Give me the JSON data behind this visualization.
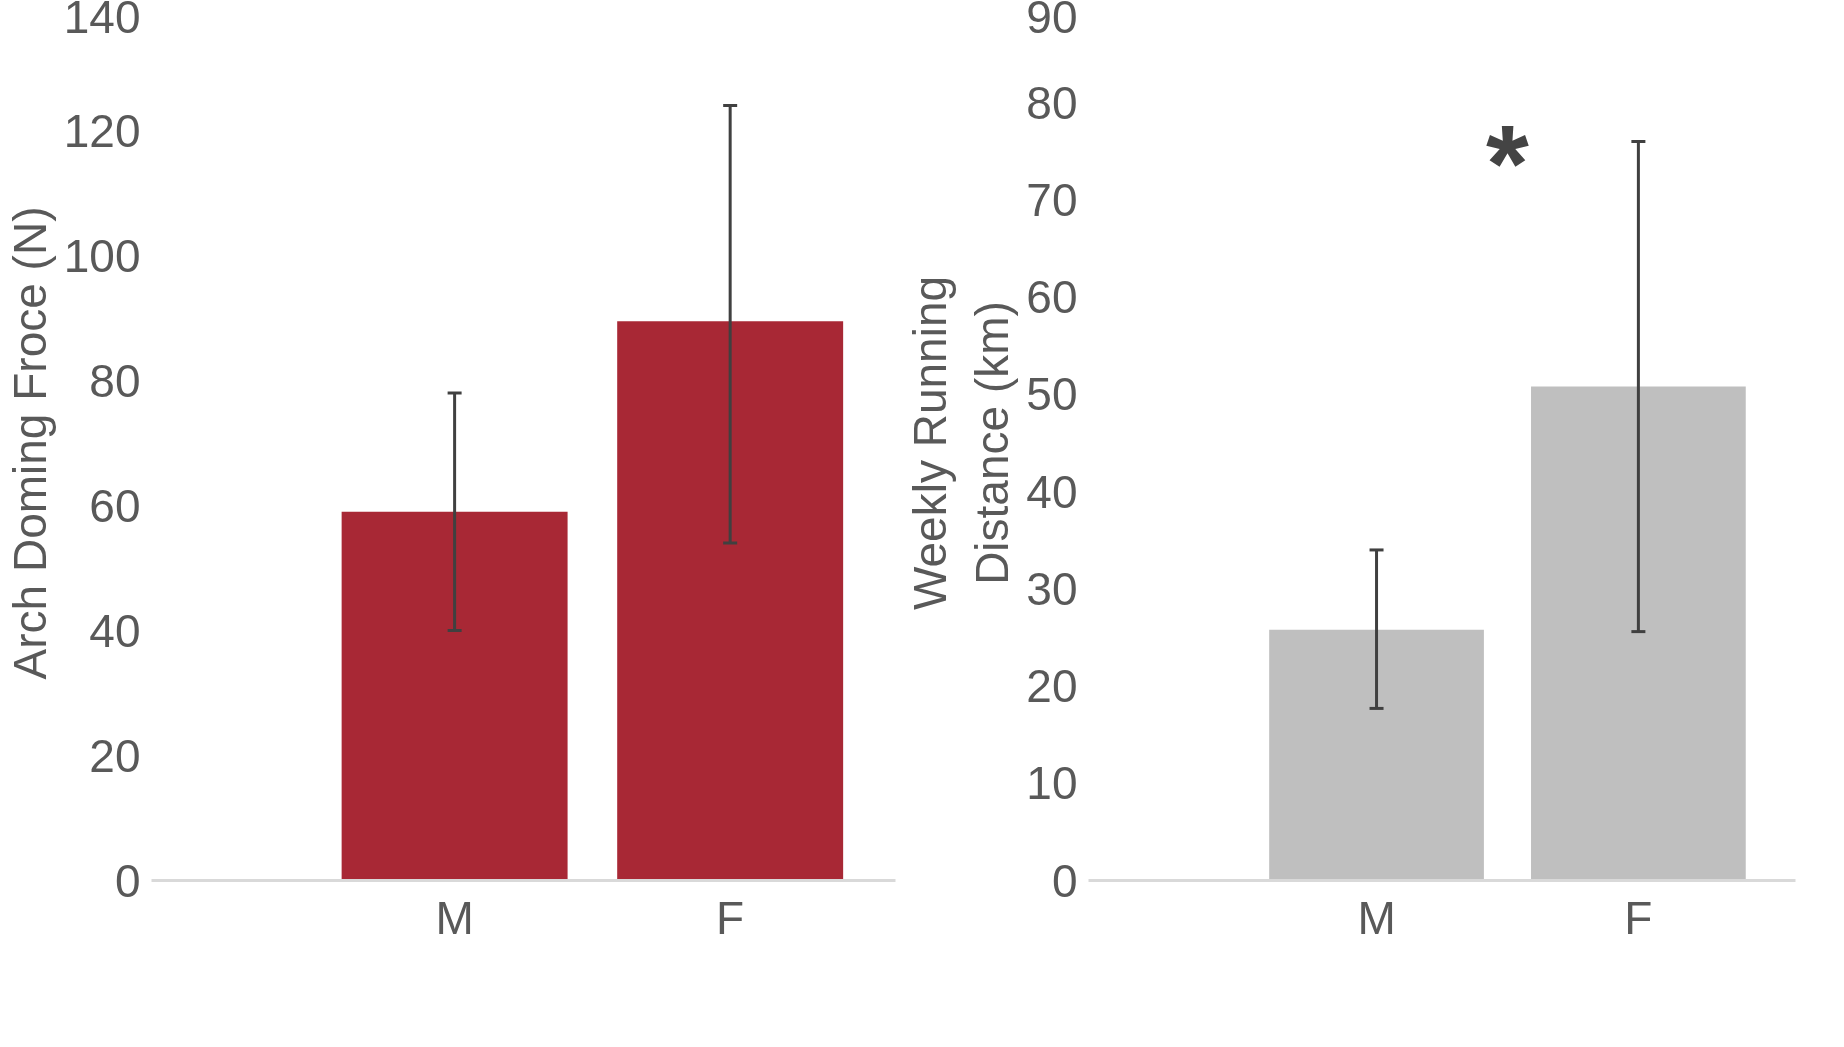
{
  "chart_data": [
    {
      "type": "bar",
      "categories": [
        "M",
        "F"
      ],
      "values": [
        59,
        89.5
      ],
      "errors": [
        [
          40,
          78
        ],
        [
          54,
          124
        ]
      ],
      "color": "#a82835",
      "ylabel": "Arch Doming Froce (N)",
      "ylim": [
        0,
        140
      ],
      "yticks": [
        0,
        20,
        40,
        60,
        80,
        100,
        120,
        140
      ],
      "grid": false
    },
    {
      "type": "bar",
      "categories": [
        "M",
        "F"
      ],
      "values": [
        25.8,
        50.8
      ],
      "errors": [
        [
          17.7,
          34
        ],
        [
          25.6,
          76
        ]
      ],
      "color": "#bfbfbf",
      "ylabel": "Weekly Running\nDistance (km)",
      "ylim": [
        0,
        90
      ],
      "yticks": [
        0,
        10,
        20,
        30,
        40,
        50,
        60,
        70,
        80,
        90
      ],
      "grid": false,
      "annotations": [
        "*"
      ]
    }
  ]
}
